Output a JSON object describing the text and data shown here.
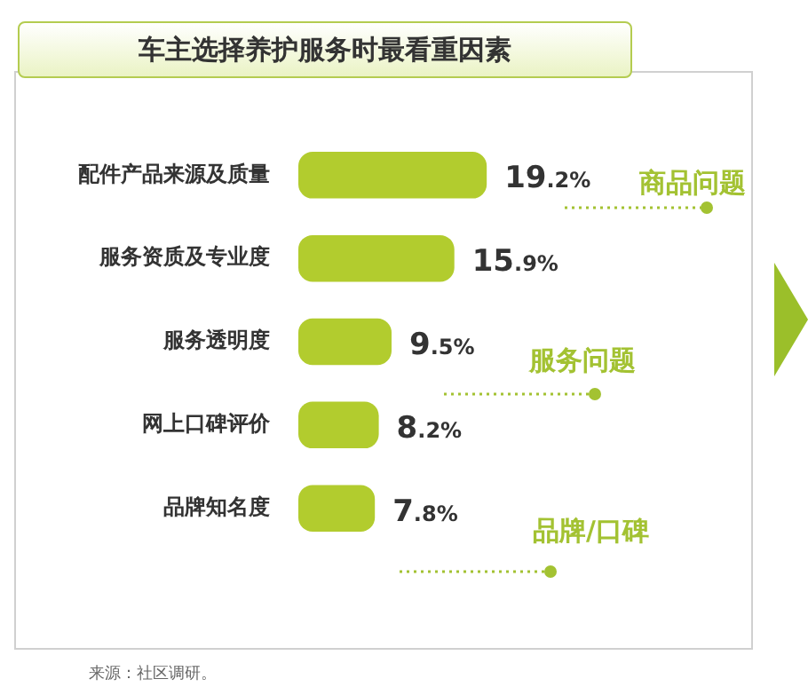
{
  "chart_data": {
    "type": "bar",
    "orientation": "horizontal",
    "title": "车主选择养护服务时最看重因素",
    "categories": [
      "配件产品来源及质量",
      "服务资质及专业度",
      "服务透明度",
      "网上口碑评价",
      "品牌知名度"
    ],
    "values": [
      19.2,
      15.9,
      9.5,
      8.2,
      7.8
    ],
    "value_labels": [
      "19.2%",
      "15.9%",
      "9.5%",
      "8.2%",
      "7.8%"
    ],
    "color": "#b2cc2e",
    "annotations": [
      "商品问题",
      "服务问题",
      "品牌/口碑",
      "来源：社区调研。"
    ]
  }
}
